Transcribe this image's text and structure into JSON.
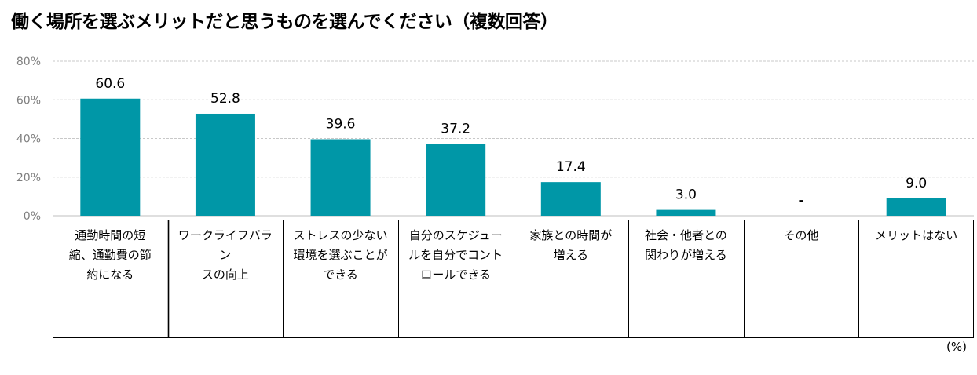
{
  "chart_data": {
    "type": "bar",
    "title": "働く場所を選ぶメリットだと思うものを選んでください（複数回答）",
    "categories": [
      "通勤時間の短縮、通勤費の節約になる",
      "ワークライフバランスの向上",
      "ストレスの少ない環境を選ぶことができる",
      "自分のスケジュールを自分でコントロールできる",
      "家族との時間が増える",
      "社会・他者との関わりが増える",
      "その他",
      "メリットはない"
    ],
    "category_lines": [
      [
        "通勤時間の短",
        "縮、通勤費の節",
        "約になる"
      ],
      [
        "ワークライフバラン",
        "スの向上"
      ],
      [
        "ストレスの少ない",
        "環境を選ぶことが",
        "できる"
      ],
      [
        "自分のスケジュー",
        "ルを自分でコント",
        "ロールできる"
      ],
      [
        "家族との時間が",
        "増える"
      ],
      [
        "社会・他者との",
        "関わりが増える"
      ],
      [
        "その他"
      ],
      [
        "メリットはない"
      ]
    ],
    "values": [
      60.6,
      52.8,
      39.6,
      37.2,
      17.4,
      3.0,
      null,
      9.0
    ],
    "data_labels": [
      "60.6",
      "52.8",
      "39.6",
      "37.2",
      "17.4",
      "3.0",
      "-",
      "9.0"
    ],
    "yticks": [
      "0%",
      "20%",
      "40%",
      "60%",
      "80%"
    ],
    "ylim": [
      0,
      80
    ],
    "unit_label": "(%)",
    "bar_color": "#0097a7",
    "grid_color": "#c8c8c8"
  }
}
